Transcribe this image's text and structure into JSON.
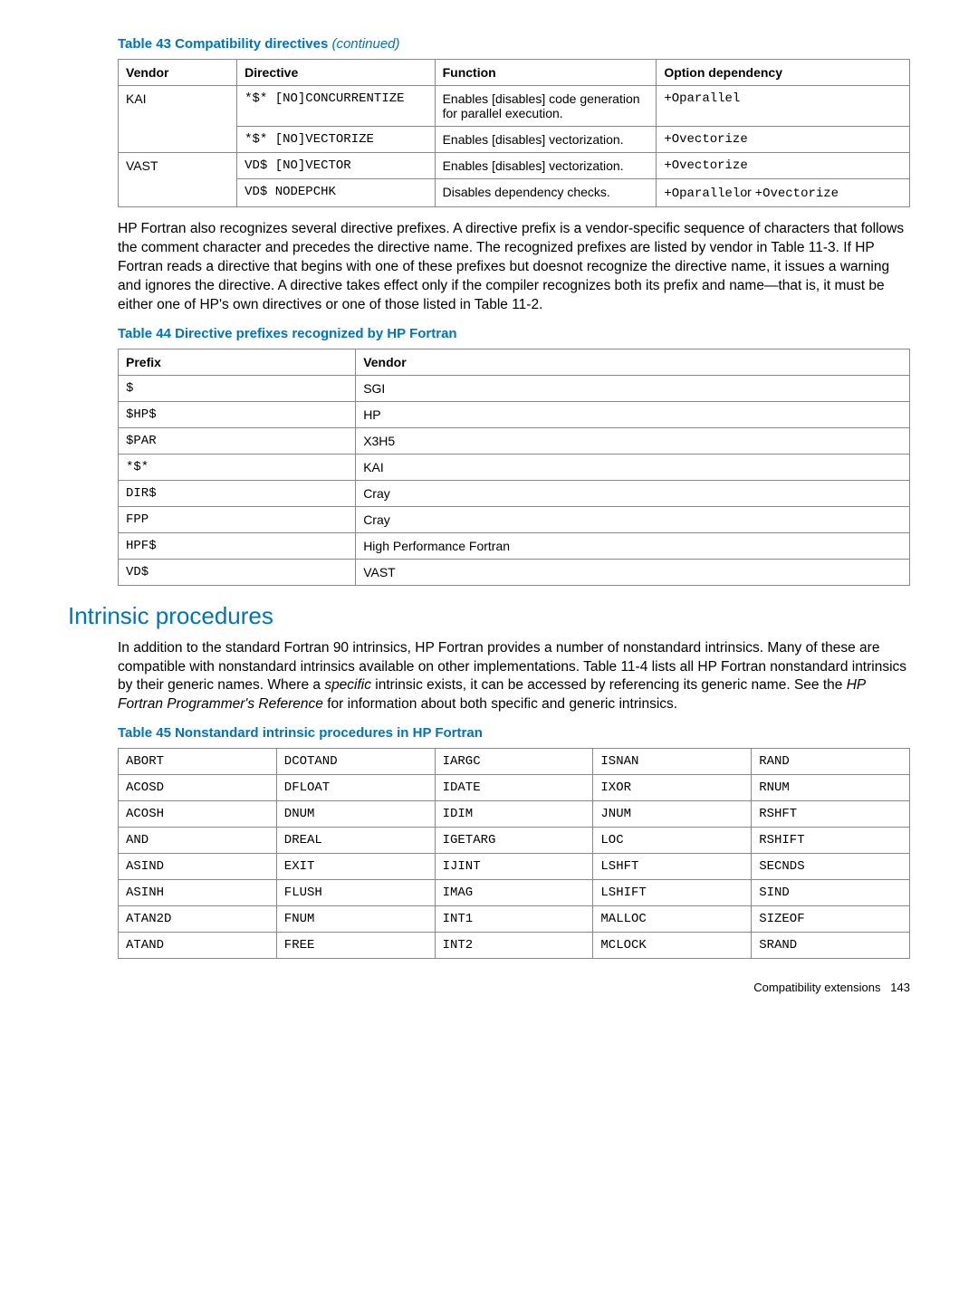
{
  "table43": {
    "caption": "Table 43 Compatibility directives",
    "continued": "(continued)",
    "headers": [
      "Vendor",
      "Directive",
      "Function",
      "Option dependency"
    ],
    "rows": [
      {
        "vendor": "KAI",
        "vendor_rowspan": 2,
        "directive": "*$* [NO]CONCURRENTIZE",
        "function": "Enables [disables] code generation for parallel execution.",
        "option": "+Oparallel"
      },
      {
        "directive": "*$* [NO]VECTORIZE",
        "function": "Enables [disables] vectorization.",
        "option": "+Ovectorize"
      },
      {
        "vendor": "VAST",
        "vendor_rowspan": 2,
        "directive": "VD$ [NO]VECTOR",
        "function": "Enables [disables] vectorization.",
        "option": "+Ovectorize"
      },
      {
        "directive": "VD$ NODEPCHK",
        "function": "Disables dependency checks.",
        "option_pre": "+Oparallel",
        "option_mid": "or ",
        "option_post": "+Ovectorize"
      }
    ]
  },
  "para1": "HP Fortran also recognizes several directive prefixes. A directive prefix is a vendor-specific sequence of characters that follows the comment character and precedes the directive name. The recognized prefixes are listed by vendor in Table 11-3. If HP Fortran reads a directive that begins with one of these prefixes but doesnot recognize the directive name, it issues a warning and ignores the directive. A directive takes effect only if the compiler recognizes both its prefix and name—that is, it must be either one of HP's own directives or one of those listed in Table 11-2.",
  "table44": {
    "caption": "Table 44 Directive prefixes recognized by HP Fortran",
    "headers": [
      "Prefix",
      "Vendor"
    ],
    "rows": [
      {
        "prefix": "$",
        "vendor": "SGI"
      },
      {
        "prefix": "$HP$",
        "vendor": "HP"
      },
      {
        "prefix": "$PAR",
        "vendor": "X3H5"
      },
      {
        "prefix": "*$*",
        "vendor": "KAI"
      },
      {
        "prefix": "DIR$",
        "vendor": "Cray"
      },
      {
        "prefix": "FPP",
        "vendor": "Cray"
      },
      {
        "prefix": "HPF$",
        "vendor": "High Performance Fortran"
      },
      {
        "prefix": "VD$",
        "vendor": "VAST"
      }
    ]
  },
  "section_heading": "Intrinsic procedures",
  "para2_a": "In addition to the standard Fortran 90 intrinsics, HP Fortran provides a number of nonstandard intrinsics. Many of these are compatible with nonstandard intrinsics available on other implementations. Table 11-4 lists all HP Fortran nonstandard intrinsics by their generic names. Where a ",
  "para2_specific": "specific",
  "para2_b": " intrinsic exists, it can be accessed by referencing its generic name. See the ",
  "para2_ref": "HP Fortran Programmer's Reference",
  "para2_c": " for information about both specific and generic intrinsics.",
  "table45": {
    "caption": "Table 45 Nonstandard intrinsic procedures in HP Fortran",
    "rows": [
      [
        "ABORT",
        "DCOTAND",
        "IARGC",
        "ISNAN",
        "RAND"
      ],
      [
        "ACOSD",
        "DFLOAT",
        "IDATE",
        "IXOR",
        "RNUM"
      ],
      [
        "ACOSH",
        "DNUM",
        "IDIM",
        "JNUM",
        "RSHFT"
      ],
      [
        "AND",
        "DREAL",
        "IGETARG",
        "LOC",
        "RSHIFT"
      ],
      [
        "ASIND",
        "EXIT",
        "IJINT",
        "LSHFT",
        "SECNDS"
      ],
      [
        "ASINH",
        "FLUSH",
        "IMAG",
        "LSHIFT",
        "SIND"
      ],
      [
        "ATAN2D",
        "FNUM",
        "INT1",
        "MALLOC",
        "SIZEOF"
      ],
      [
        "ATAND",
        "FREE",
        "INT2",
        "MCLOCK",
        "SRAND"
      ]
    ]
  },
  "footer_label": "Compatibility extensions",
  "footer_page": "143"
}
